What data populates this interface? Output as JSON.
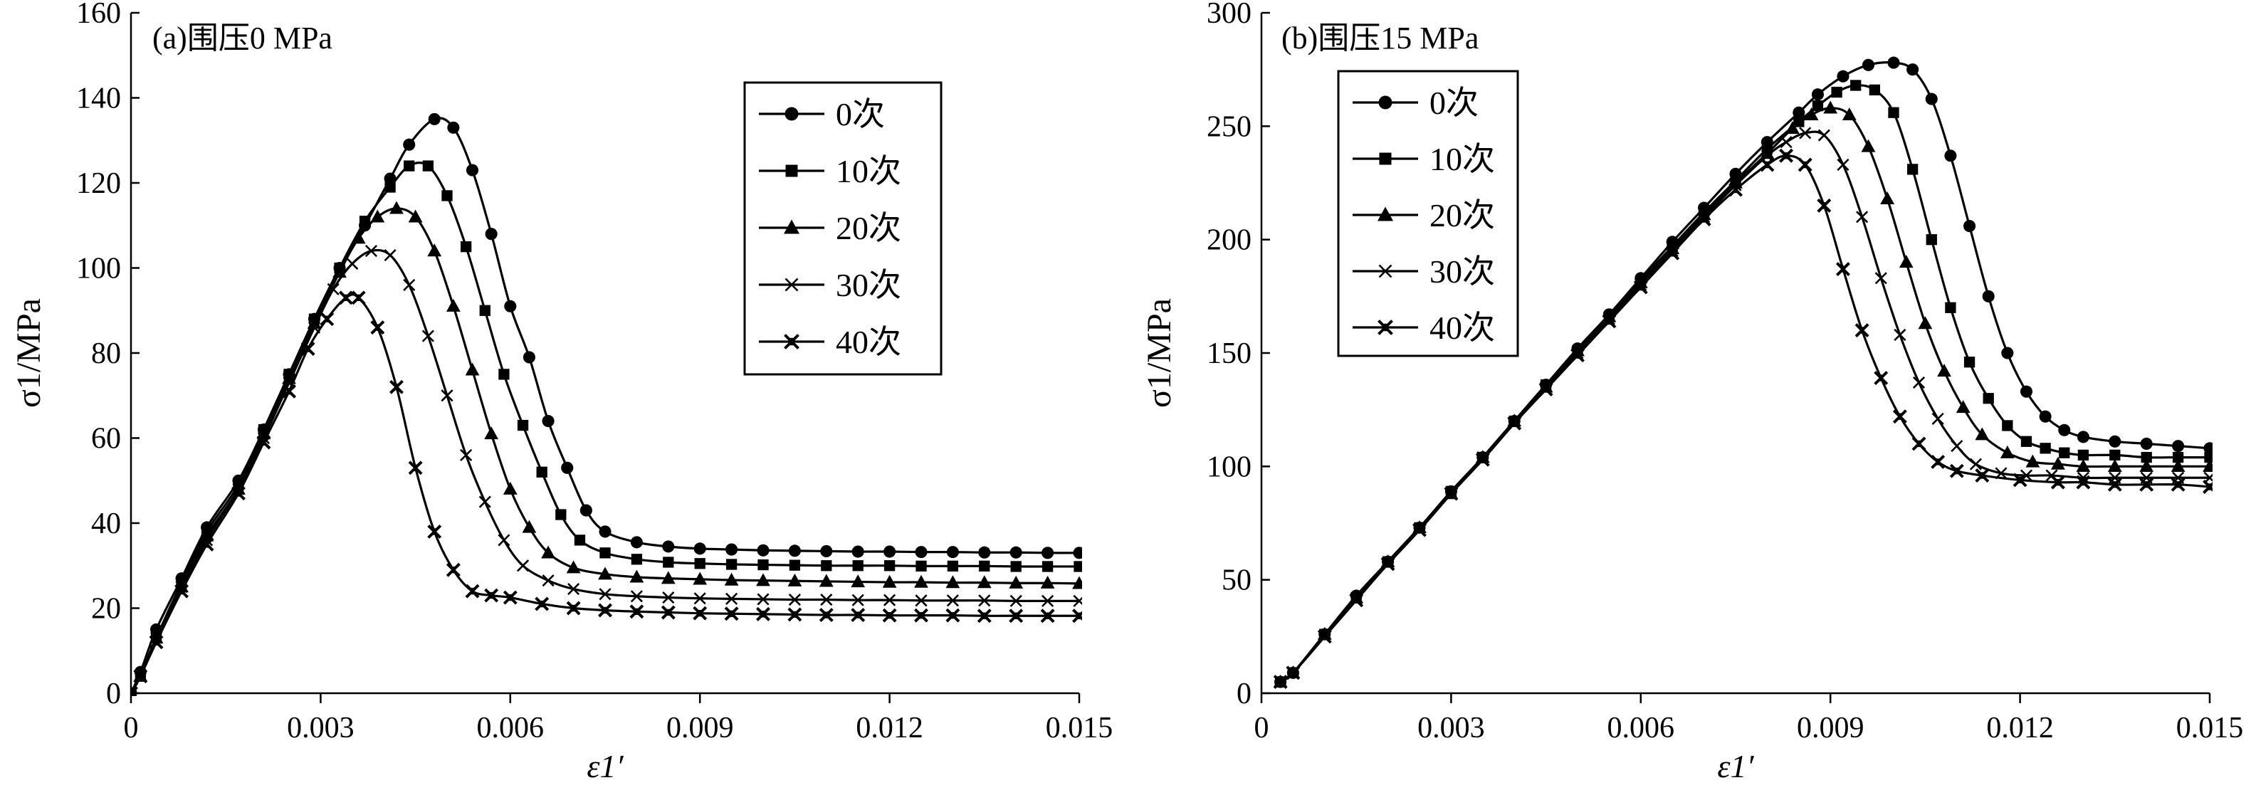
{
  "chart_data": [
    {
      "type": "line",
      "title": "(a)围压0 MPa",
      "xlabel": "ε1′",
      "ylabel": "σ1/MPa",
      "xlim": [
        0,
        0.015
      ],
      "ylim": [
        0,
        160
      ],
      "xticks": [
        "0",
        "0.003",
        "0.006",
        "0.009",
        "0.012",
        "0.015"
      ],
      "yticks": [
        "0",
        "20",
        "40",
        "60",
        "80",
        "100",
        "120",
        "140",
        "160"
      ],
      "legend_position": "top-right",
      "series": [
        {
          "name": "0次",
          "marker": "circle",
          "x": [
            0,
            0.00015,
            0.0004,
            0.0008,
            0.0012,
            0.0017,
            0.0021,
            0.0025,
            0.0029,
            0.0033,
            0.0037,
            0.0041,
            0.0044,
            0.0048,
            0.0051,
            0.0054,
            0.0057,
            0.006,
            0.0063,
            0.0066,
            0.0069,
            0.0072,
            0.0075,
            0.008,
            0.0085,
            0.009,
            0.0095,
            0.01,
            0.0105,
            0.011,
            0.0115,
            0.012,
            0.0125,
            0.013,
            0.0135,
            0.014,
            0.0145,
            0.015
          ],
          "y": [
            0,
            5,
            15,
            27,
            39,
            50,
            62,
            75,
            88,
            100,
            110,
            121,
            129,
            135,
            133,
            123,
            108,
            91,
            79,
            64,
            53,
            43,
            38,
            35.5,
            34.5,
            34,
            33.8,
            33.6,
            33.5,
            33.4,
            33.3,
            33.3,
            33.2,
            33.2,
            33.1,
            33.1,
            33.0,
            33.0
          ]
        },
        {
          "name": "10次",
          "marker": "square",
          "x": [
            0,
            0.00015,
            0.0004,
            0.0008,
            0.0012,
            0.0017,
            0.0021,
            0.0025,
            0.0029,
            0.0033,
            0.0037,
            0.0041,
            0.0044,
            0.0047,
            0.005,
            0.0053,
            0.0056,
            0.0059,
            0.0062,
            0.0065,
            0.0068,
            0.0071,
            0.0075,
            0.008,
            0.0085,
            0.009,
            0.0095,
            0.01,
            0.0105,
            0.011,
            0.0115,
            0.012,
            0.0125,
            0.013,
            0.0135,
            0.014,
            0.0145,
            0.015
          ],
          "y": [
            0,
            4,
            13,
            26,
            38,
            49,
            62,
            75,
            88,
            100,
            111,
            119,
            124,
            124,
            117,
            105,
            90,
            75,
            63,
            52,
            42,
            36,
            33,
            31.5,
            30.8,
            30.5,
            30.3,
            30.2,
            30.1,
            30.0,
            30.0,
            30.0,
            29.9,
            29.9,
            29.9,
            29.8,
            29.8,
            29.8
          ]
        },
        {
          "name": "20次",
          "marker": "triangle",
          "x": [
            0,
            0.00015,
            0.0004,
            0.0008,
            0.0012,
            0.0017,
            0.0021,
            0.0025,
            0.0029,
            0.0033,
            0.0036,
            0.0039,
            0.0042,
            0.0045,
            0.0048,
            0.0051,
            0.0054,
            0.0057,
            0.006,
            0.0063,
            0.0066,
            0.007,
            0.0075,
            0.008,
            0.0085,
            0.009,
            0.0095,
            0.01,
            0.0105,
            0.011,
            0.0115,
            0.012,
            0.0125,
            0.013,
            0.0135,
            0.014,
            0.0145,
            0.015
          ],
          "y": [
            0,
            4,
            13,
            25,
            37,
            48,
            61,
            74,
            87,
            99,
            107,
            112,
            114,
            112,
            104,
            91,
            76,
            61,
            48,
            39,
            33,
            29.5,
            28,
            27.3,
            27,
            26.8,
            26.6,
            26.5,
            26.4,
            26.3,
            26.2,
            26.1,
            26.1,
            26.0,
            26.0,
            25.9,
            25.9,
            25.8
          ]
        },
        {
          "name": "30次",
          "marker": "cross",
          "x": [
            0,
            0.00015,
            0.0004,
            0.0008,
            0.0012,
            0.0017,
            0.0021,
            0.0025,
            0.0029,
            0.0032,
            0.0035,
            0.0038,
            0.0041,
            0.0044,
            0.0047,
            0.005,
            0.0053,
            0.0056,
            0.0059,
            0.0062,
            0.0066,
            0.007,
            0.0075,
            0.008,
            0.0085,
            0.009,
            0.0095,
            0.01,
            0.0105,
            0.011,
            0.0115,
            0.012,
            0.0125,
            0.013,
            0.0135,
            0.014,
            0.0145,
            0.015
          ],
          "y": [
            0,
            4,
            13,
            25,
            36,
            48,
            60,
            73,
            86,
            95,
            101,
            104,
            103,
            96,
            84,
            70,
            56,
            45,
            36,
            30,
            26.5,
            24.5,
            23.3,
            22.8,
            22.5,
            22.3,
            22.2,
            22.1,
            22.0,
            22.0,
            21.9,
            21.9,
            21.8,
            21.8,
            21.8,
            21.7,
            21.7,
            21.7
          ]
        },
        {
          "name": "40次",
          "marker": "xstar",
          "x": [
            0,
            0.00015,
            0.0004,
            0.0008,
            0.0012,
            0.0017,
            0.0021,
            0.0025,
            0.0028,
            0.0031,
            0.0034,
            0.0036,
            0.0039,
            0.0042,
            0.0045,
            0.0048,
            0.0051,
            0.0054,
            0.0057,
            0.006,
            0.0065,
            0.007,
            0.0075,
            0.008,
            0.0085,
            0.009,
            0.0095,
            0.01,
            0.0105,
            0.011,
            0.0115,
            0.012,
            0.0125,
            0.013,
            0.0135,
            0.014,
            0.0145,
            0.015
          ],
          "y": [
            0,
            4,
            12,
            24,
            35,
            47,
            59,
            71,
            81,
            88,
            93,
            93,
            86,
            72,
            53,
            38,
            29,
            24,
            23,
            22.5,
            21,
            20,
            19.5,
            19.2,
            19.0,
            18.8,
            18.7,
            18.6,
            18.5,
            18.4,
            18.4,
            18.3,
            18.3,
            18.3,
            18.2,
            18.2,
            18.2,
            18.2
          ]
        }
      ]
    },
    {
      "type": "line",
      "title": "(b)围压15 MPa",
      "xlabel": "ε1′",
      "ylabel": "σ1/MPa",
      "xlim": [
        0,
        0.015
      ],
      "ylim": [
        0,
        300
      ],
      "xticks": [
        "0",
        "0.003",
        "0.006",
        "0.009",
        "0.012",
        "0.015"
      ],
      "yticks": [
        "0",
        "50",
        "100",
        "150",
        "200",
        "250",
        "300"
      ],
      "legend_position": "top-left",
      "series": [
        {
          "name": "0次",
          "marker": "circle",
          "x": [
            0.0003,
            0.0005,
            0.001,
            0.0015,
            0.002,
            0.0025,
            0.003,
            0.0035,
            0.004,
            0.0045,
            0.005,
            0.0055,
            0.006,
            0.0065,
            0.007,
            0.0075,
            0.008,
            0.0085,
            0.0088,
            0.0092,
            0.0096,
            0.01,
            0.0103,
            0.0106,
            0.0109,
            0.0112,
            0.0115,
            0.0118,
            0.0121,
            0.0124,
            0.0127,
            0.013,
            0.0135,
            0.014,
            0.0145,
            0.015
          ],
          "y": [
            5,
            9,
            26,
            43,
            58,
            73,
            89,
            104,
            120,
            136,
            152,
            167,
            183,
            199,
            214,
            229,
            243,
            256,
            264,
            272,
            277,
            278,
            275,
            262,
            237,
            206,
            175,
            150,
            133,
            122,
            116,
            113,
            111,
            110,
            109,
            108
          ]
        },
        {
          "name": "10次",
          "marker": "square",
          "x": [
            0.0003,
            0.0005,
            0.001,
            0.0015,
            0.002,
            0.0025,
            0.003,
            0.0035,
            0.004,
            0.0045,
            0.005,
            0.0055,
            0.006,
            0.0065,
            0.007,
            0.0075,
            0.008,
            0.0085,
            0.0088,
            0.0091,
            0.0094,
            0.0097,
            0.01,
            0.0103,
            0.0106,
            0.0109,
            0.0112,
            0.0115,
            0.0118,
            0.0121,
            0.0124,
            0.0127,
            0.013,
            0.0135,
            0.014,
            0.0145,
            0.015
          ],
          "y": [
            5,
            9,
            26,
            42,
            58,
            73,
            89,
            104,
            120,
            136,
            151,
            166,
            182,
            197,
            212,
            226,
            240,
            252,
            259,
            265,
            268,
            266,
            256,
            231,
            200,
            170,
            146,
            130,
            118,
            111,
            108,
            106,
            105,
            105,
            104,
            104,
            104
          ]
        },
        {
          "name": "20次",
          "marker": "triangle",
          "x": [
            0.0003,
            0.0005,
            0.001,
            0.0015,
            0.002,
            0.0025,
            0.003,
            0.0035,
            0.004,
            0.0045,
            0.005,
            0.0055,
            0.006,
            0.0065,
            0.007,
            0.0075,
            0.008,
            0.0084,
            0.0087,
            0.009,
            0.0093,
            0.0096,
            0.0099,
            0.0102,
            0.0105,
            0.0108,
            0.0111,
            0.0114,
            0.0118,
            0.0122,
            0.0126,
            0.013,
            0.0135,
            0.014,
            0.0145,
            0.015
          ],
          "y": [
            5,
            9,
            26,
            42,
            58,
            73,
            88,
            104,
            120,
            135,
            151,
            166,
            181,
            196,
            211,
            225,
            238,
            249,
            255,
            258,
            255,
            241,
            218,
            190,
            163,
            142,
            126,
            114,
            106,
            102,
            101,
            100,
            100,
            100,
            100,
            100
          ]
        },
        {
          "name": "30次",
          "marker": "cross",
          "x": [
            0.0003,
            0.0005,
            0.001,
            0.0015,
            0.002,
            0.0025,
            0.003,
            0.0035,
            0.004,
            0.0045,
            0.005,
            0.0055,
            0.006,
            0.0065,
            0.007,
            0.0075,
            0.008,
            0.0083,
            0.0086,
            0.0089,
            0.0092,
            0.0095,
            0.0098,
            0.0101,
            0.0104,
            0.0107,
            0.011,
            0.0113,
            0.0117,
            0.0121,
            0.0125,
            0.013,
            0.0135,
            0.014,
            0.0145,
            0.015
          ],
          "y": [
            5,
            9,
            25,
            42,
            57,
            72,
            88,
            104,
            119,
            135,
            150,
            165,
            180,
            195,
            210,
            224,
            237,
            243,
            247,
            246,
            233,
            210,
            183,
            158,
            137,
            121,
            109,
            101,
            97,
            96,
            96,
            95,
            95,
            95,
            95,
            95
          ]
        },
        {
          "name": "40次",
          "marker": "xstar",
          "x": [
            0.0003,
            0.0005,
            0.001,
            0.0015,
            0.002,
            0.0025,
            0.003,
            0.0035,
            0.004,
            0.0045,
            0.005,
            0.0055,
            0.006,
            0.0065,
            0.007,
            0.0075,
            0.008,
            0.0083,
            0.0086,
            0.0089,
            0.0092,
            0.0095,
            0.0098,
            0.0101,
            0.0104,
            0.0107,
            0.011,
            0.0114,
            0.012,
            0.0126,
            0.013,
            0.0135,
            0.014,
            0.0145,
            0.015
          ],
          "y": [
            5,
            9,
            25,
            41,
            57,
            72,
            88,
            103,
            119,
            134,
            149,
            164,
            179,
            194,
            209,
            222,
            233,
            237,
            233,
            215,
            187,
            160,
            139,
            122,
            110,
            102,
            98,
            96,
            94,
            93,
            93,
            92,
            92,
            92,
            91
          ]
        }
      ]
    }
  ]
}
